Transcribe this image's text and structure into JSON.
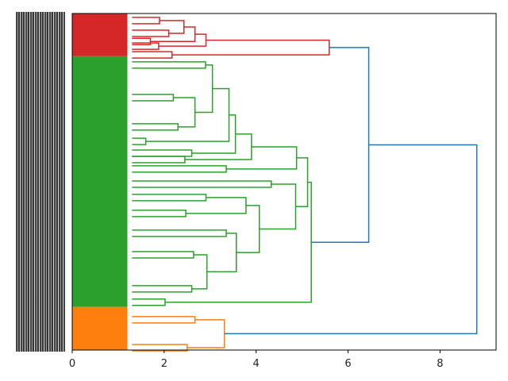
{
  "chart_data": {
    "type": "dendrogram",
    "orientation": "left",
    "title": "",
    "xlabel": "",
    "ylabel": "",
    "xlim": [
      0,
      9.22
    ],
    "x_ticks": [
      "0",
      "2",
      "4",
      "6",
      "8"
    ],
    "leaf_labels_legible": false,
    "colors": {
      "red": "#d62728",
      "green": "#2ca02c",
      "orange": "#ff7f0e",
      "above": "#1f77b4"
    },
    "leaf_blocks": [
      {
        "color": "red",
        "from": 0,
        "to": 127,
        "height": 1.2
      },
      {
        "color": "green",
        "from": 127,
        "to": 872,
        "height": 1.2
      },
      {
        "color": "orange",
        "from": 872,
        "to": 1000,
        "height": 1.2
      }
    ],
    "tree": {
      "h": 8.8,
      "c": "above",
      "k": [
        {
          "h": 6.45,
          "c": "above",
          "k": [
            {
              "h": 5.59,
              "c": "red",
              "k": [
                {
                  "h": 2.91,
                  "c": "red",
                  "k": [
                    {
                      "h": 2.67,
                      "c": "red",
                      "k": [
                        {
                          "h": 2.43,
                          "c": "red",
                          "k": [
                            {
                              "y": 21,
                              "h": 1.9
                            },
                            {
                              "y": 59,
                              "h": 2.1
                            }
                          ]
                        },
                        {
                          "y": 83,
                          "h": 1.7
                        }
                      ]
                    },
                    {
                      "y": 97,
                      "h": 1.88
                    }
                  ]
                },
                {
                  "y": 123,
                  "h": 2.17
                }
              ]
            },
            {
              "h": 5.2,
              "c": "green",
              "k": [
                {
                  "h": 5.12,
                  "c": "green",
                  "k": [
                    {
                      "h": 4.88,
                      "c": "green",
                      "k": [
                        {
                          "h": 3.9,
                          "c": "green",
                          "k": [
                            {
                              "h": 3.55,
                              "c": "green",
                              "k": [
                                {
                                  "h": 3.41,
                                  "c": "green",
                                  "k": [
                                    {
                                      "h": 3.05,
                                      "c": "green",
                                      "k": [
                                        {
                                          "y": 153,
                                          "h": 2.9
                                        },
                                        {
                                          "h": 2.67,
                                          "c": "green",
                                          "k": [
                                            {
                                              "y": 250,
                                              "h": 2.2
                                            },
                                            {
                                              "y": 337,
                                              "h": 2.3
                                            }
                                          ]
                                        }
                                      ]
                                    },
                                    {
                                      "y": 380,
                                      "h": 1.6
                                    }
                                  ]
                                },
                                {
                                  "y": 415,
                                  "h": 2.6
                                }
                              ]
                            },
                            {
                              "y": 434,
                              "h": 2.45
                            }
                          ]
                        },
                        {
                          "y": 462,
                          "h": 3.35
                        }
                      ]
                    },
                    {
                      "h": 4.86,
                      "c": "green",
                      "k": [
                        {
                          "y": 507,
                          "h": 4.33
                        },
                        {
                          "h": 4.07,
                          "c": "green",
                          "k": [
                            {
                              "h": 3.78,
                              "c": "green",
                              "k": [
                                {
                                  "y": 547,
                                  "h": 2.91
                                },
                                {
                                  "y": 594,
                                  "h": 2.47
                                }
                              ]
                            },
                            {
                              "h": 3.57,
                              "c": "green",
                              "k": [
                                {
                                  "y": 653,
                                  "h": 3.35
                                },
                                {
                                  "h": 2.93,
                                  "c": "green",
                                  "k": [
                                    {
                                      "y": 717,
                                      "h": 2.64
                                    },
                                    {
                                      "y": 818,
                                      "h": 2.6
                                    }
                                  ]
                                }
                              ]
                            }
                          ]
                        }
                      ]
                    }
                  ]
                },
                {
                  "y": 858,
                  "h": 2.02
                }
              ]
            }
          ]
        },
        {
          "h": 3.31,
          "c": "orange",
          "k": [
            {
              "y": 910,
              "h": 2.67
            },
            {
              "y": 993,
              "h": 2.5
            }
          ]
        }
      ]
    }
  }
}
